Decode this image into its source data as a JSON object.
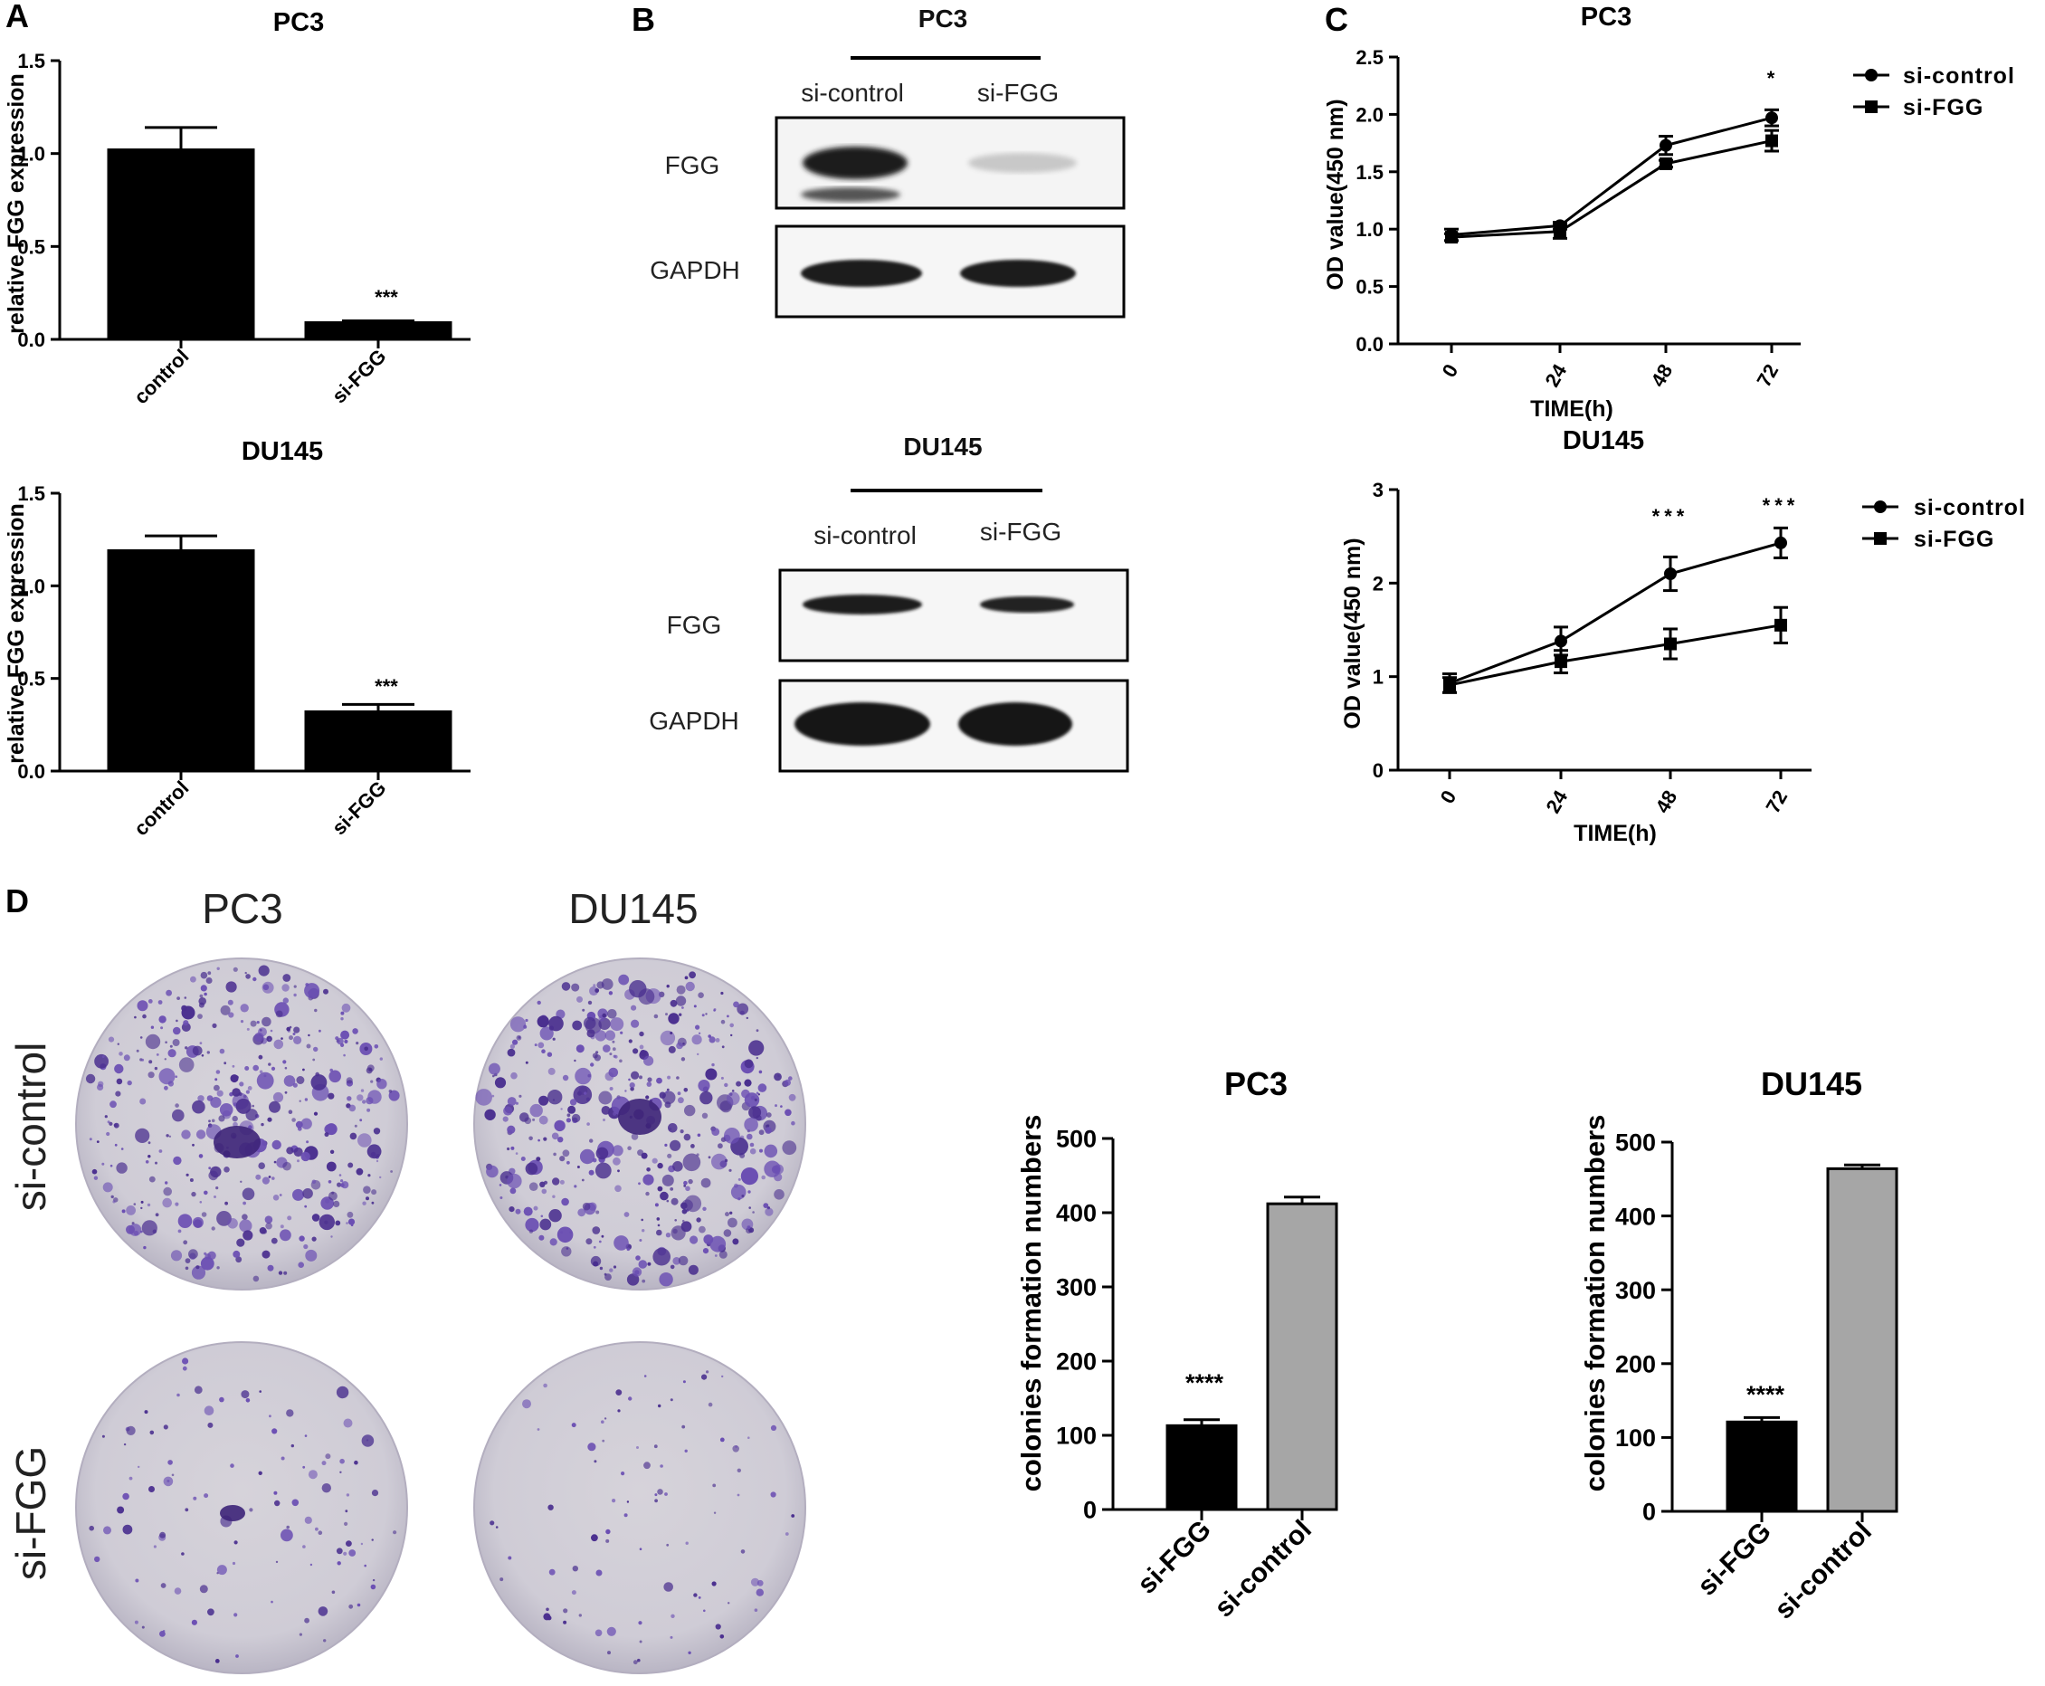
{
  "panels": {
    "A": "A",
    "B": "B",
    "C": "C",
    "D": "D"
  },
  "panelA": {
    "pc3_title": "PC3",
    "du145_title": "DU145",
    "ylabel": "relative FGG expression",
    "pc3_star": "***",
    "du145_star": "***"
  },
  "panelB": {
    "pc3_title": "PC3",
    "du145_title": "DU145",
    "lane1": "si-control",
    "lane2": "si-FGG",
    "row1": "FGG",
    "row2": "GAPDH"
  },
  "panelC": {
    "pc3_title": "PC3",
    "du145_title": "DU145",
    "ylabel": "OD value(450 nm)",
    "xlabel": "TIME(h)",
    "pc3_star72": "*",
    "du145_star48": "***",
    "du145_star72": "***",
    "legend1": "si-control",
    "legend2": "si-FGG"
  },
  "panelD": {
    "col1": "PC3",
    "col2": "DU145",
    "row1": "si-control",
    "row2": "si-FGG",
    "pc3_title": "PC3",
    "du145_title": "DU145",
    "ylabel": "colonies formation numbers",
    "pc3_star": "****",
    "du145_star": "****"
  },
  "colors": {
    "black_bar": "#000000",
    "grey_bar": "#a6a6a6",
    "plate_bg": "#d9d6e0",
    "colony": "#5b3aa0"
  },
  "chart_data": [
    {
      "id": "A-PC3",
      "type": "bar",
      "title": "PC3",
      "ylabel": "relative FGG expression",
      "categories": [
        "control",
        "si-FGG"
      ],
      "values": [
        1.02,
        0.09
      ],
      "errors": [
        0.12,
        0.01
      ],
      "ylim": [
        0,
        1.5
      ],
      "yticks": [
        "0.0",
        "0.5",
        "1.0",
        "1.5"
      ],
      "bar_colors": [
        "#000000",
        "#000000"
      ],
      "annotation": "***"
    },
    {
      "id": "A-DU145",
      "type": "bar",
      "title": "DU145",
      "ylabel": "relative FGG expression",
      "categories": [
        "control",
        "si-FGG"
      ],
      "values": [
        1.19,
        0.32
      ],
      "errors": [
        0.08,
        0.04
      ],
      "ylim": [
        0,
        1.5
      ],
      "yticks": [
        "0.0",
        "0.5",
        "1.0",
        "1.5"
      ],
      "bar_colors": [
        "#000000",
        "#000000"
      ],
      "annotation": "***"
    },
    {
      "id": "C-PC3",
      "type": "line",
      "title": "PC3",
      "xlabel": "TIME(h)",
      "ylabel": "OD value(450 nm)",
      "x": [
        "0",
        "24",
        "48",
        "72"
      ],
      "series": [
        {
          "name": "si-control",
          "values": [
            0.95,
            1.03,
            1.73,
            1.97
          ],
          "errors": [
            0.05,
            0.03,
            0.08,
            0.07
          ]
        },
        {
          "name": "si-FGG",
          "values": [
            0.93,
            0.98,
            1.57,
            1.77
          ],
          "errors": [
            0.03,
            0.06,
            0.03,
            0.09
          ]
        }
      ],
      "ylim": [
        0,
        2.5
      ],
      "yticks": [
        "0.0",
        "0.5",
        "1.0",
        "1.5",
        "2.0",
        "2.5"
      ],
      "legend": "right",
      "annotations": [
        {
          "x": "72",
          "text": "*"
        }
      ]
    },
    {
      "id": "C-DU145",
      "type": "line",
      "title": "DU145",
      "xlabel": "TIME(h)",
      "ylabel": "OD value(450 nm)",
      "x": [
        "0",
        "24",
        "48",
        "72"
      ],
      "series": [
        {
          "name": "si-control",
          "values": [
            0.93,
            1.38,
            2.1,
            2.43
          ],
          "errors": [
            0.1,
            0.15,
            0.18,
            0.16
          ]
        },
        {
          "name": "si-FGG",
          "values": [
            0.91,
            1.16,
            1.35,
            1.55
          ],
          "errors": [
            0.08,
            0.12,
            0.16,
            0.19
          ]
        }
      ],
      "ylim": [
        0,
        3
      ],
      "yticks": [
        "0",
        "1",
        "2",
        "3"
      ],
      "legend": "right",
      "annotations": [
        {
          "x": "48",
          "text": "***"
        },
        {
          "x": "72",
          "text": "***"
        }
      ]
    },
    {
      "id": "D-PC3",
      "type": "bar",
      "title": "PC3",
      "ylabel": "colonies formation numbers",
      "categories": [
        "si-FGG",
        "si-control"
      ],
      "values": [
        113,
        412
      ],
      "errors": [
        8,
        9
      ],
      "ylim": [
        0,
        500
      ],
      "yticks": [
        "0",
        "100",
        "200",
        "300",
        "400",
        "500"
      ],
      "bar_colors": [
        "#000000",
        "#a6a6a6"
      ],
      "annotation": "****"
    },
    {
      "id": "D-DU145",
      "type": "bar",
      "title": "DU145",
      "ylabel": "colonies formation numbers",
      "categories": [
        "si-FGG",
        "si-control"
      ],
      "values": [
        121,
        464
      ],
      "errors": [
        6,
        5
      ],
      "ylim": [
        0,
        500
      ],
      "yticks": [
        "0",
        "100",
        "200",
        "300",
        "400",
        "500"
      ],
      "bar_colors": [
        "#000000",
        "#a6a6a6"
      ],
      "annotation": "****"
    }
  ]
}
